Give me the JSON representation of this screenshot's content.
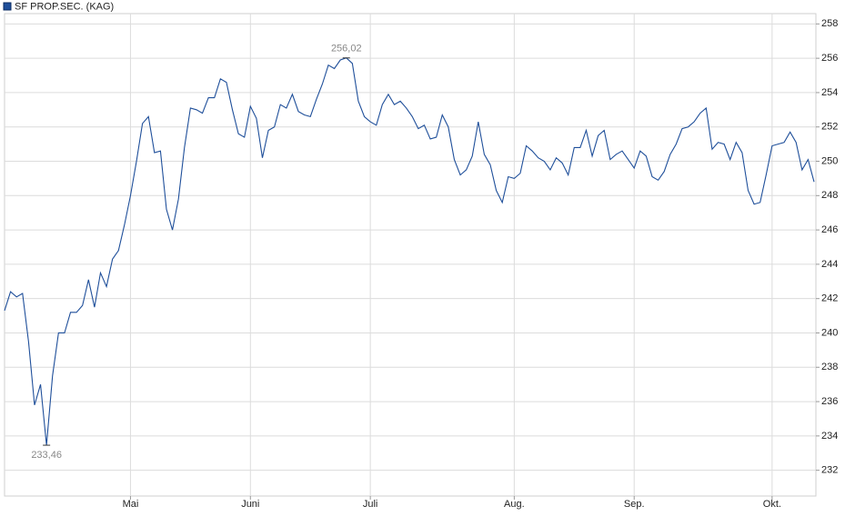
{
  "chart_data": {
    "type": "line",
    "categories": [
      null,
      null,
      null,
      null,
      null,
      null,
      null,
      null,
      null,
      null,
      null,
      null,
      null,
      null,
      null,
      null,
      null,
      null,
      null,
      null,
      null,
      "Mai",
      null,
      null,
      null,
      null,
      null,
      null,
      null,
      null,
      null,
      null,
      null,
      null,
      null,
      null,
      null,
      null,
      null,
      null,
      null,
      "Juni",
      null,
      null,
      null,
      null,
      null,
      null,
      null,
      null,
      null,
      null,
      null,
      null,
      null,
      null,
      null,
      null,
      null,
      null,
      null,
      "Juli",
      null,
      null,
      null,
      null,
      null,
      null,
      null,
      null,
      null,
      null,
      null,
      null,
      null,
      null,
      null,
      null,
      null,
      null,
      null,
      null,
      null,
      null,
      null,
      "Aug.",
      null,
      null,
      null,
      null,
      null,
      null,
      null,
      null,
      null,
      null,
      null,
      null,
      null,
      null,
      null,
      null,
      null,
      null,
      null,
      "Sep.",
      null,
      null,
      null,
      null,
      null,
      null,
      null,
      null,
      null,
      null,
      null,
      null,
      null,
      null,
      null,
      null,
      null,
      null,
      null,
      null,
      null,
      null,
      "Okt.",
      null,
      null,
      null,
      null,
      null,
      null,
      null
    ],
    "series": [
      {
        "name": "SF PROP.SEC. (KAG)",
        "color": "#1f4f9a",
        "values": [
          241.3,
          242.4,
          242.1,
          242.3,
          239.5,
          235.8,
          237.0,
          233.46,
          237.5,
          240.0,
          240.0,
          241.2,
          241.2,
          241.6,
          243.1,
          241.5,
          243.5,
          242.7,
          244.3,
          244.8,
          246.3,
          248.0,
          250.0,
          252.2,
          252.6,
          250.5,
          250.6,
          247.2,
          246.0,
          247.8,
          250.8,
          253.1,
          253.0,
          252.8,
          253.7,
          253.7,
          254.8,
          254.6,
          253.0,
          251.6,
          251.4,
          253.2,
          252.5,
          250.2,
          251.8,
          252.0,
          253.3,
          253.1,
          253.9,
          252.9,
          252.7,
          252.6,
          253.6,
          254.5,
          255.6,
          255.4,
          255.9,
          256.02,
          255.7,
          253.5,
          252.6,
          252.3,
          252.1,
          253.3,
          253.9,
          253.3,
          253.5,
          253.1,
          252.6,
          251.9,
          252.1,
          251.3,
          251.4,
          252.7,
          252.0,
          250.1,
          249.2,
          249.5,
          250.3,
          252.3,
          250.4,
          249.8,
          248.3,
          247.6,
          249.1,
          249.0,
          249.3,
          250.9,
          250.6,
          250.2,
          250.0,
          249.5,
          250.2,
          249.9,
          249.2,
          250.8,
          250.8,
          251.8,
          250.3,
          251.5,
          251.8,
          250.1,
          250.4,
          250.6,
          250.1,
          249.6,
          250.6,
          250.3,
          249.1,
          248.9,
          249.4,
          250.4,
          251.0,
          251.9,
          252.0,
          252.3,
          252.8,
          253.1,
          250.7,
          251.1,
          251.0,
          250.1,
          251.1,
          250.5,
          248.3,
          247.5,
          247.6,
          249.2,
          250.9,
          251.0,
          251.1,
          251.7,
          251.1,
          249.5,
          250.1,
          248.8
        ],
        "value_labels": [
          null,
          null,
          null,
          null,
          null,
          null,
          null,
          "233,46",
          null,
          null,
          null,
          null,
          null,
          null,
          null,
          null,
          null,
          null,
          null,
          null,
          null,
          null,
          null,
          null,
          null,
          null,
          null,
          null,
          null,
          null,
          null,
          null,
          null,
          null,
          null,
          null,
          null,
          null,
          null,
          null,
          null,
          null,
          null,
          null,
          null,
          null,
          null,
          null,
          null,
          null,
          null,
          null,
          null,
          null,
          null,
          null,
          null,
          "256,02",
          null,
          null,
          null,
          null,
          null,
          null,
          null,
          null,
          null,
          null,
          null,
          null,
          null,
          null,
          null,
          null,
          null,
          null,
          null,
          null,
          null,
          null,
          null,
          null,
          null,
          null,
          null,
          null,
          null,
          null,
          null,
          null,
          null,
          null,
          null,
          null,
          null,
          null,
          null,
          null,
          null,
          null,
          null,
          null,
          null,
          null,
          null,
          null,
          null,
          null,
          null,
          null,
          null,
          null,
          null,
          null,
          null,
          null,
          null,
          null,
          null,
          null,
          null,
          null,
          null,
          null,
          null,
          null,
          null,
          null,
          null,
          null,
          null,
          null,
          null,
          null,
          null,
          null
        ]
      }
    ],
    "ylim": [
      230.5,
      258.6
    ],
    "yticks": [
      232,
      234,
      236,
      238,
      240,
      242,
      244,
      246,
      248,
      250,
      252,
      254,
      256,
      258
    ],
    "grid": true
  }
}
